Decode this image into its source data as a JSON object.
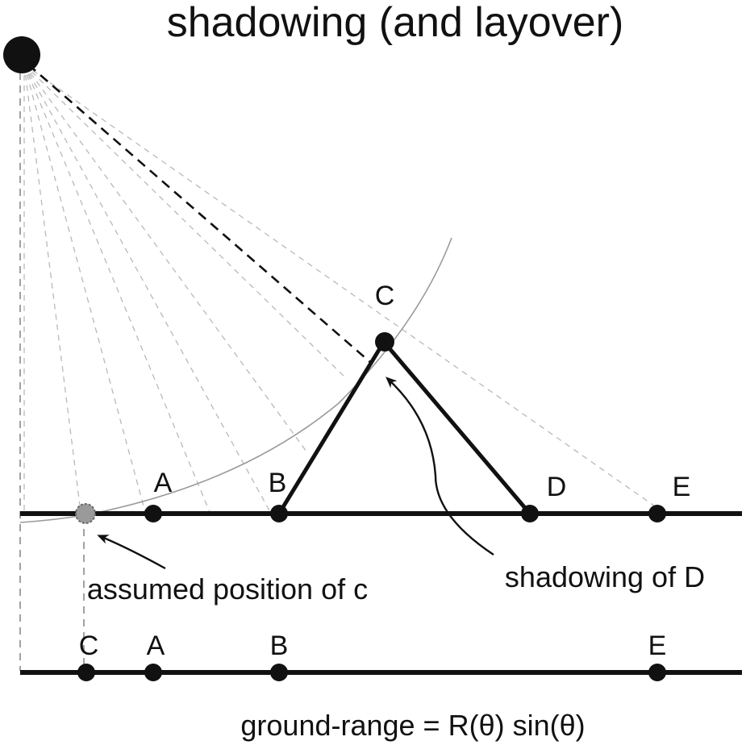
{
  "title": "shadowing (and layover)",
  "points": {
    "A": "A",
    "B": "B",
    "C": "C",
    "D": "D",
    "E": "E"
  },
  "projected_points": {
    "C": "C",
    "A": "A",
    "B": "B",
    "E": "E"
  },
  "annotations": {
    "assumed_position": "assumed position of c",
    "shadowing": "shadowing of D",
    "ground_range": "ground-range = R(θ) sin(θ)"
  }
}
